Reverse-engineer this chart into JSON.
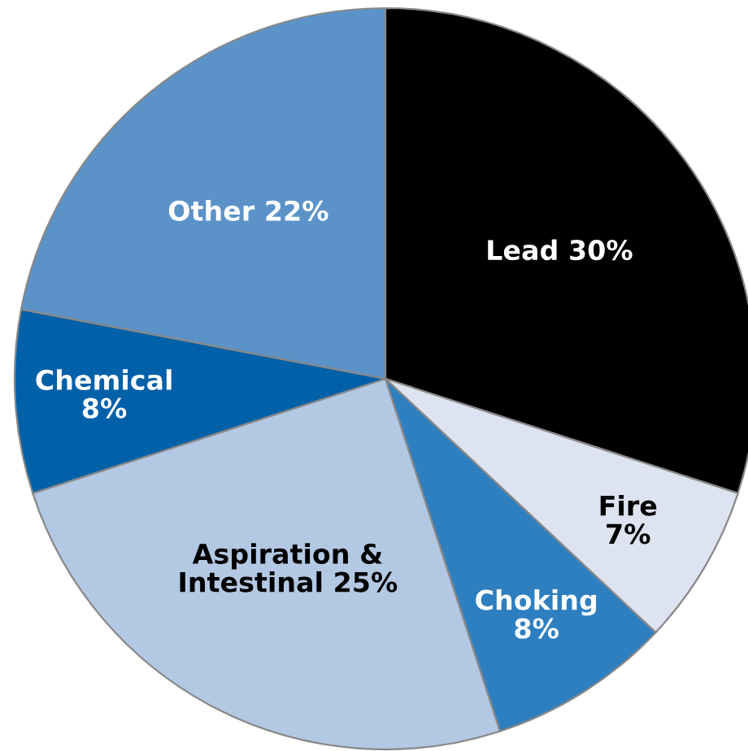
{
  "chart_data": {
    "type": "pie",
    "categories": [
      "Lead",
      "Fire",
      "Choking",
      "Aspiration &\nIntestinal",
      "Chemical",
      "Other"
    ],
    "values": [
      30,
      7,
      8,
      25,
      8,
      22
    ],
    "value_labels": [
      "30%",
      "7%",
      "8%",
      "25%",
      "8%",
      "22%"
    ],
    "colors": [
      "#000000",
      "#dde3f0",
      "#2e7fc0",
      "#b3c8e3",
      "#0060a8",
      "#5b93c9"
    ]
  }
}
